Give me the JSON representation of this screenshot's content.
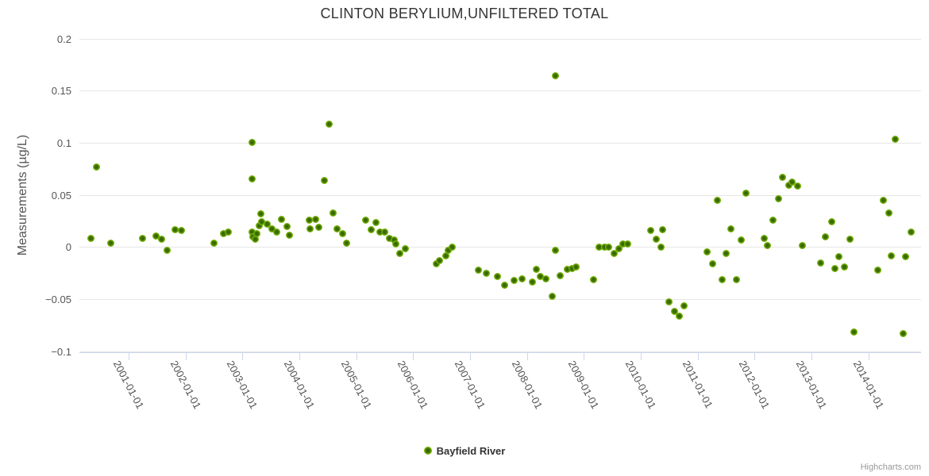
{
  "title": "CLINTON BERYLIUM,UNFILTERED TOTAL",
  "legend": {
    "series_label": "Bayfield River"
  },
  "credits": "Highcharts.com",
  "colors": {
    "marker_outer": "#7fbe12",
    "marker_mid": "#74b106",
    "marker_inner": "#3a6904",
    "gridline": "#e6e6e6",
    "axis_tick": "#ccd6eb",
    "axis_label": "#555555",
    "title_text": "#333333",
    "credits_text": "#999999"
  },
  "chart_data": {
    "type": "scatter",
    "title": "CLINTON BERYLIUM,UNFILTERED TOTAL",
    "xlabel": "",
    "ylabel": "Measurements (µg/L)",
    "ylim": [
      -0.1,
      0.2
    ],
    "xlim": [
      2000.135,
      2014.926
    ],
    "grid": true,
    "legend_position": "bottom-center",
    "y_ticks": [
      0.2,
      0.15,
      0.1,
      0.05,
      0,
      -0.05,
      -0.1
    ],
    "y_tick_labels": [
      "0.2",
      "0.15",
      "0.1",
      "0.05",
      "0",
      "−0.05",
      "−0.1"
    ],
    "x_ticks": [
      2001,
      2002,
      2003,
      2004,
      2005,
      2006,
      2007,
      2008,
      2009,
      2010,
      2011,
      2012,
      2013,
      2014
    ],
    "x_tick_labels": [
      "2001-01-01",
      "2002-01-01",
      "2003-01-01",
      "2004-01-01",
      "2005-01-01",
      "2006-01-01",
      "2007-01-01",
      "2008-01-01",
      "2009-01-01",
      "2010-01-01",
      "2011-01-01",
      "2012-01-01",
      "2013-01-01",
      "2014-01-01"
    ],
    "series": [
      {
        "name": "Bayfield River",
        "points": [
          [
            2000.34,
            0.009
          ],
          [
            2000.43,
            0.077
          ],
          [
            2000.68,
            0.004
          ],
          [
            2001.25,
            0.009
          ],
          [
            2001.48,
            0.011
          ],
          [
            2001.58,
            0.008
          ],
          [
            2001.68,
            -0.003
          ],
          [
            2001.82,
            0.017
          ],
          [
            2001.93,
            0.016
          ],
          [
            2002.5,
            0.004
          ],
          [
            2002.67,
            0.013
          ],
          [
            2002.75,
            0.015
          ],
          [
            2003.17,
            0.101
          ],
          [
            2003.17,
            0.066
          ],
          [
            2003.17,
            0.015
          ],
          [
            2003.19,
            0.01
          ],
          [
            2003.22,
            0.008
          ],
          [
            2003.26,
            0.013
          ],
          [
            2003.3,
            0.021
          ],
          [
            2003.33,
            0.032
          ],
          [
            2003.34,
            0.025
          ],
          [
            2003.43,
            0.022
          ],
          [
            2003.52,
            0.018
          ],
          [
            2003.6,
            0.015
          ],
          [
            2003.69,
            0.027
          ],
          [
            2003.78,
            0.02
          ],
          [
            2003.82,
            0.012
          ],
          [
            2004.18,
            0.026
          ],
          [
            2004.19,
            0.018
          ],
          [
            2004.29,
            0.027
          ],
          [
            2004.34,
            0.019
          ],
          [
            2004.44,
            0.064
          ],
          [
            2004.53,
            0.118
          ],
          [
            2004.6,
            0.033
          ],
          [
            2004.66,
            0.018
          ],
          [
            2004.76,
            0.013
          ],
          [
            2004.83,
            0.004
          ],
          [
            2005.17,
            0.026
          ],
          [
            2005.26,
            0.017
          ],
          [
            2005.34,
            0.024
          ],
          [
            2005.41,
            0.015
          ],
          [
            2005.5,
            0.015
          ],
          [
            2005.59,
            0.009
          ],
          [
            2005.67,
            0.007
          ],
          [
            2005.7,
            0.003
          ],
          [
            2005.76,
            -0.006
          ],
          [
            2005.86,
            -0.001
          ],
          [
            2006.41,
            -0.016
          ],
          [
            2006.47,
            -0.013
          ],
          [
            2006.57,
            -0.008
          ],
          [
            2006.62,
            -0.003
          ],
          [
            2006.68,
            0.0
          ],
          [
            2007.15,
            -0.022
          ],
          [
            2007.29,
            -0.025
          ],
          [
            2007.48,
            -0.028
          ],
          [
            2007.61,
            -0.036
          ],
          [
            2007.77,
            -0.032
          ],
          [
            2007.91,
            -0.03
          ],
          [
            2008.1,
            -0.033
          ],
          [
            2008.16,
            -0.021
          ],
          [
            2008.24,
            -0.028
          ],
          [
            2008.33,
            -0.03
          ],
          [
            2008.45,
            -0.047
          ],
          [
            2008.5,
            0.165
          ],
          [
            2008.5,
            -0.003
          ],
          [
            2008.59,
            -0.027
          ],
          [
            2008.71,
            -0.021
          ],
          [
            2008.79,
            -0.02
          ],
          [
            2008.87,
            -0.019
          ],
          [
            2009.17,
            -0.031
          ],
          [
            2009.27,
            0.0
          ],
          [
            2009.37,
            0.0
          ],
          [
            2009.44,
            0.0
          ],
          [
            2009.53,
            -0.006
          ],
          [
            2009.61,
            -0.001
          ],
          [
            2009.69,
            0.003
          ],
          [
            2009.77,
            0.003
          ],
          [
            2010.17,
            0.016
          ],
          [
            2010.27,
            0.008
          ],
          [
            2010.35,
            0.0
          ],
          [
            2010.39,
            0.017
          ],
          [
            2010.5,
            -0.052
          ],
          [
            2010.59,
            -0.061
          ],
          [
            2010.68,
            -0.066
          ],
          [
            2010.76,
            -0.056
          ],
          [
            2011.16,
            -0.004
          ],
          [
            2011.26,
            -0.016
          ],
          [
            2011.35,
            0.045
          ],
          [
            2011.43,
            -0.031
          ],
          [
            2011.5,
            -0.006
          ],
          [
            2011.58,
            0.018
          ],
          [
            2011.68,
            -0.031
          ],
          [
            2011.76,
            0.007
          ],
          [
            2011.85,
            0.052
          ],
          [
            2012.17,
            0.009
          ],
          [
            2012.22,
            0.002
          ],
          [
            2012.33,
            0.026
          ],
          [
            2012.42,
            0.047
          ],
          [
            2012.49,
            0.067
          ],
          [
            2012.6,
            0.06
          ],
          [
            2012.66,
            0.063
          ],
          [
            2012.75,
            0.059
          ],
          [
            2012.84,
            0.002
          ],
          [
            2013.16,
            -0.015
          ],
          [
            2013.25,
            0.01
          ],
          [
            2013.35,
            0.025
          ],
          [
            2013.41,
            -0.02
          ],
          [
            2013.48,
            -0.009
          ],
          [
            2013.58,
            -0.019
          ],
          [
            2013.68,
            0.008
          ],
          [
            2013.74,
            -0.081
          ],
          [
            2014.17,
            -0.022
          ],
          [
            2014.26,
            0.045
          ],
          [
            2014.36,
            0.033
          ],
          [
            2014.4,
            -0.008
          ],
          [
            2014.47,
            0.104
          ],
          [
            2014.61,
            -0.083
          ],
          [
            2014.65,
            -0.009
          ],
          [
            2014.75,
            0.015
          ]
        ]
      }
    ]
  }
}
